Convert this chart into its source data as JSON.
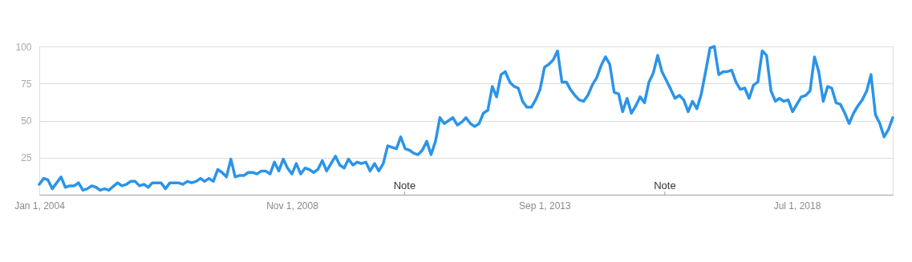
{
  "chart_data": {
    "type": "line",
    "x": [
      "2004-01",
      "2004-02",
      "2004-03",
      "2004-04",
      "2004-06",
      "2004-07",
      "2004-08",
      "2004-09",
      "2004-10",
      "2004-11",
      "2004-12",
      "2005-01",
      "2005-02",
      "2005-03",
      "2005-04",
      "2005-05",
      "2005-07",
      "2005-08",
      "2005-09",
      "2005-10",
      "2005-11",
      "2005-12",
      "2006-01",
      "2006-02",
      "2006-03",
      "2006-05",
      "2006-06",
      "2006-07",
      "2006-09",
      "2006-10",
      "2006-11",
      "2006-12",
      "2007-01",
      "2007-02",
      "2007-03",
      "2007-04",
      "2007-05",
      "2007-06",
      "2007-07",
      "2007-08",
      "2007-09",
      "2007-10",
      "2007-11",
      "2007-12",
      "2008-01",
      "2008-02",
      "2008-03",
      "2008-04",
      "2008-05",
      "2008-06",
      "2008-07",
      "2008-08",
      "2008-09",
      "2008-10",
      "2008-11",
      "2008-12",
      "2009-01",
      "2009-02",
      "2009-03",
      "2009-04",
      "2009-05",
      "2009-06",
      "2009-07",
      "2009-08",
      "2009-09",
      "2009-10",
      "2009-11",
      "2009-12",
      "2010-01",
      "2010-02",
      "2010-03",
      "2010-04",
      "2010-05",
      "2010-06",
      "2010-07",
      "2010-08",
      "2010-09",
      "2010-10",
      "2010-11",
      "2010-12",
      "2011-01",
      "2011-02",
      "2011-03",
      "2011-04",
      "2011-05",
      "2011-06",
      "2011-07",
      "2011-08",
      "2011-09",
      "2011-10",
      "2011-11",
      "2011-12",
      "2012-01",
      "2012-02",
      "2012-03",
      "2012-04",
      "2012-05",
      "2012-06",
      "2012-07",
      "2012-08",
      "2012-09",
      "2012-10",
      "2012-11",
      "2012-12",
      "2013-01",
      "2013-02",
      "2013-03",
      "2013-04",
      "2013-05",
      "2013-06",
      "2013-07",
      "2013-08",
      "2013-09",
      "2013-10",
      "2013-11",
      "2013-12",
      "2014-01",
      "2014-02",
      "2014-03",
      "2014-04",
      "2014-05",
      "2014-06",
      "2014-07",
      "2014-08",
      "2014-09",
      "2014-10",
      "2014-11",
      "2014-12",
      "2015-01",
      "2015-02",
      "2015-03",
      "2015-04",
      "2015-05",
      "2015-06",
      "2015-07",
      "2015-08",
      "2015-09",
      "2015-10",
      "2015-11",
      "2015-12",
      "2016-01",
      "2016-02",
      "2016-03",
      "2016-04",
      "2016-05",
      "2016-06",
      "2016-07",
      "2016-08",
      "2016-09",
      "2016-10",
      "2016-11",
      "2016-12",
      "2017-01",
      "2017-02",
      "2017-03",
      "2017-04",
      "2017-05",
      "2017-06",
      "2017-07",
      "2017-08",
      "2017-09",
      "2017-10",
      "2017-11",
      "2017-12",
      "2018-01",
      "2018-02",
      "2018-03",
      "2018-04",
      "2018-05",
      "2018-06",
      "2018-07",
      "2018-08",
      "2018-09",
      "2018-10",
      "2018-11",
      "2018-12",
      "2019-01",
      "2019-02",
      "2019-03",
      "2019-04",
      "2019-05",
      "2019-06",
      "2019-07",
      "2019-08",
      "2019-09",
      "2019-10",
      "2019-11",
      "2019-12",
      "2020-01",
      "2020-02",
      "2020-03",
      "2020-04",
      "2020-05"
    ],
    "series": [
      {
        "color": "#2b94e9",
        "values": [
          7,
          11,
          10,
          4,
          12,
          5,
          6,
          6,
          8,
          3,
          4,
          6,
          5,
          3,
          4,
          3,
          8,
          6,
          7,
          9,
          9,
          6,
          7,
          5,
          8,
          8,
          4,
          8,
          8,
          7,
          9,
          8,
          9,
          11,
          9,
          11,
          9,
          17,
          15,
          12,
          24,
          12,
          13,
          13,
          15,
          15,
          14,
          16,
          16,
          14,
          22,
          16,
          24,
          18,
          14,
          21,
          14,
          18,
          17,
          15,
          17,
          23,
          16,
          21,
          26,
          20,
          18,
          24,
          20,
          22,
          21,
          22,
          16,
          21,
          16,
          21,
          33,
          32,
          31,
          39,
          31,
          30,
          28,
          27,
          30,
          36,
          27,
          36,
          52,
          48,
          50,
          52,
          47,
          49,
          52,
          48,
          46,
          48,
          55,
          57,
          73,
          66,
          81,
          83,
          76,
          73,
          72,
          63,
          59,
          59,
          64,
          71,
          86,
          88,
          91,
          97,
          76,
          76,
          71,
          67,
          64,
          63,
          67,
          74,
          79,
          87,
          93,
          88,
          69,
          68,
          56,
          65,
          55,
          60,
          66,
          62,
          76,
          82,
          94,
          83,
          77,
          71,
          65,
          67,
          64,
          56,
          63,
          58,
          68,
          83,
          99,
          100,
          81,
          83,
          83,
          84,
          76,
          71,
          72,
          65,
          74,
          76,
          97,
          94,
          70,
          63,
          65,
          63,
          64,
          56,
          61,
          66,
          67,
          70,
          93,
          83,
          63,
          73,
          72,
          62,
          61,
          55,
          48,
          55,
          60,
          64,
          70,
          81,
          54,
          48,
          39,
          44,
          52
        ]
      }
    ],
    "xlim": [
      "2004-01",
      "2020-05"
    ],
    "xticks": [
      {
        "value": "2004-01-01",
        "label": "Jan 1, 2004"
      },
      {
        "value": "2008-11-01",
        "label": "Nov 1, 2008"
      },
      {
        "value": "2013-09-01",
        "label": "Sep 1, 2013"
      },
      {
        "value": "2018-07-01",
        "label": "Jul 1, 2018"
      }
    ],
    "ylim": [
      0,
      100
    ],
    "yticks": [
      25,
      50,
      75,
      100
    ],
    "grid": "y",
    "legend": false,
    "line_style": "solid",
    "marker": "none",
    "annotations": [
      "Note",
      "Note"
    ]
  }
}
